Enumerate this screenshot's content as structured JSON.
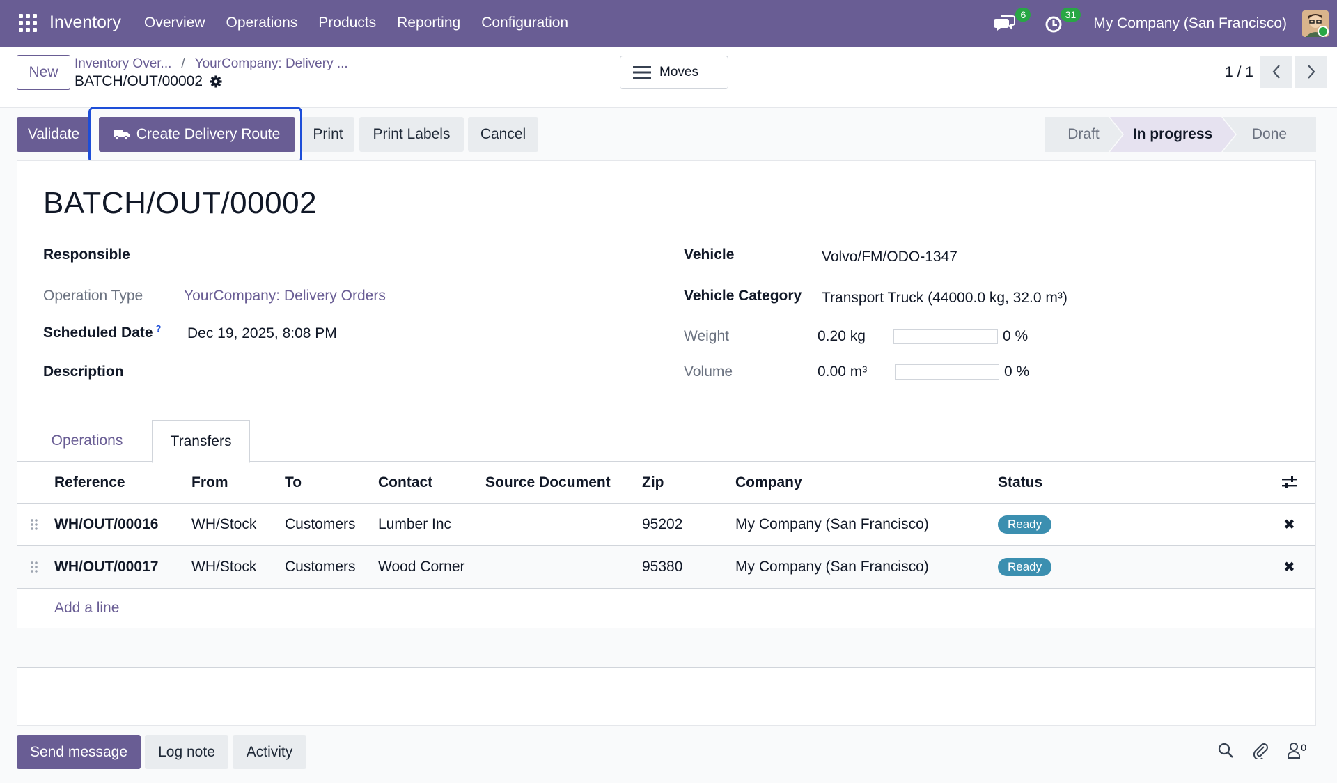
{
  "nav": {
    "app_name": "Inventory",
    "menu": [
      "Overview",
      "Operations",
      "Products",
      "Reporting",
      "Configuration"
    ],
    "messages_count": "6",
    "activities_count": "31",
    "company": "My Company (San Francisco)"
  },
  "control": {
    "new_label": "New",
    "breadcrumb": [
      "Inventory Over...",
      "YourCompany: Delivery ..."
    ],
    "breadcrumb_sep": "/",
    "record_name": "BATCH/OUT/00002",
    "moves_label": "Moves",
    "pager": "1 / 1"
  },
  "actions": {
    "validate": "Validate",
    "create_route": "Create Delivery Route",
    "print": "Print",
    "print_labels": "Print Labels",
    "cancel": "Cancel"
  },
  "statusbar": {
    "stages": [
      "Draft",
      "In progress",
      "Done"
    ],
    "active": "In progress"
  },
  "form": {
    "title": "BATCH/OUT/00002",
    "responsible_label": "Responsible",
    "operation_type_label": "Operation Type",
    "operation_type_value": "YourCompany: Delivery Orders",
    "scheduled_date_label": "Scheduled Date",
    "scheduled_date_help": "?",
    "scheduled_date_value": "Dec 19, 2025, 8:08 PM",
    "description_label": "Description",
    "vehicle_label": "Vehicle",
    "vehicle_value": "Volvo/FM/ODO-1347",
    "vehicle_category_label": "Vehicle Category",
    "vehicle_category_value": "Transport Truck (44000.0 kg, 32.0 m³)",
    "weight_label": "Weight",
    "weight_value": "0.20 kg",
    "weight_percent": "0 %",
    "weight_progress": 0,
    "volume_label": "Volume",
    "volume_value": "0.00 m³",
    "volume_percent": "0 %",
    "volume_progress": 0
  },
  "tabs": [
    "Operations",
    "Transfers"
  ],
  "active_tab": "Transfers",
  "table": {
    "headers": [
      "Reference",
      "From",
      "To",
      "Contact",
      "Source Document",
      "Zip",
      "Company",
      "Status"
    ],
    "rows": [
      {
        "reference": "WH/OUT/00016",
        "from": "WH/Stock",
        "to": "Customers",
        "contact": "Lumber Inc",
        "source": "",
        "zip": "95202",
        "company": "My Company (San Francisco)",
        "status": "Ready"
      },
      {
        "reference": "WH/OUT/00017",
        "from": "WH/Stock",
        "to": "Customers",
        "contact": "Wood Corner",
        "source": "",
        "zip": "95380",
        "company": "My Company (San Francisco)",
        "status": "Ready"
      }
    ],
    "add_line": "Add a line",
    "delete_glyph": "✖"
  },
  "chatter": {
    "send_message": "Send message",
    "log_note": "Log note",
    "activity": "Activity",
    "followers_count": "0"
  },
  "colors": {
    "brand": "#695d94",
    "focus": "#1d4ed8",
    "ready_badge": "#3b8fb0",
    "notification_badge": "#28a745"
  }
}
